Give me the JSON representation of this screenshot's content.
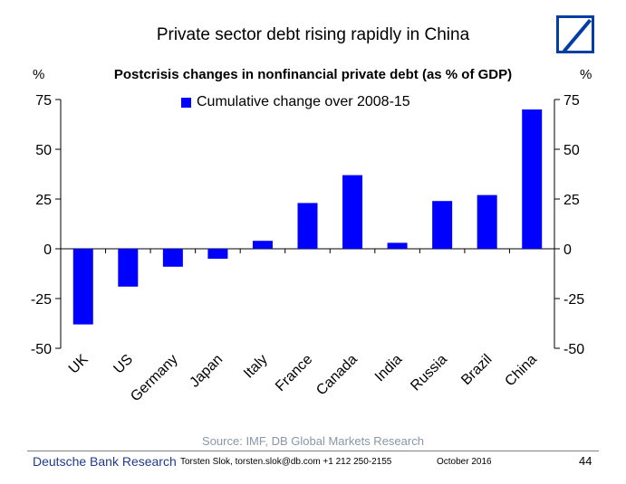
{
  "page_title": "Private sector debt rising rapidly in China",
  "logo": "deutsche-bank-logo",
  "footer": {
    "brand": "Deutsche Bank Research",
    "author": "Torsten Slok, torsten.slok@db.com  +1 212 250-2155",
    "date": "October 2016",
    "page_number": "44"
  },
  "chart_data": {
    "type": "bar",
    "title": "Postcrisis changes in nonfinancial private debt (as % of GDP)",
    "ylabel_left": "%",
    "ylabel_right": "%",
    "categories": [
      "UK",
      "US",
      "Germany",
      "Japan",
      "Italy",
      "France",
      "Canada",
      "India",
      "Russia",
      "Brazil",
      "China"
    ],
    "series": [
      {
        "name": "Cumulative change over 2008-15",
        "values": [
          -38,
          -19,
          -9,
          -5,
          4,
          23,
          37,
          3,
          24,
          27,
          70
        ],
        "color": "#0000ff"
      }
    ],
    "ylim": [
      -50,
      75
    ],
    "yticks": [
      "75",
      "50",
      "25",
      "0",
      "-25",
      "-50"
    ],
    "grid": false,
    "legend_position": "top-left",
    "source": "Source: IMF, DB Global Markets Research"
  }
}
